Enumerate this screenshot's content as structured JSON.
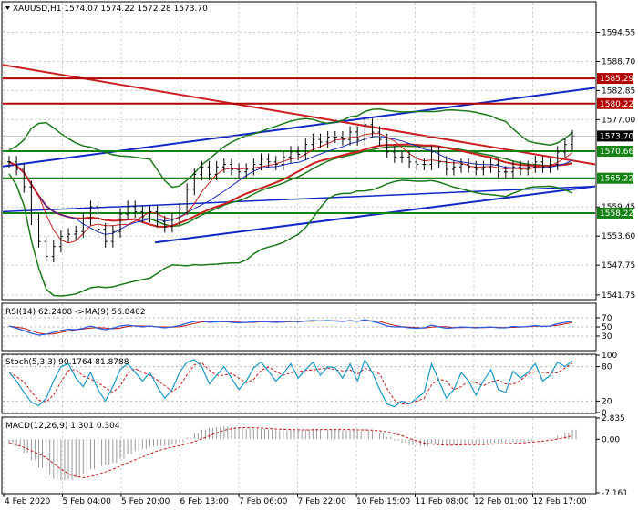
{
  "colors": {
    "price": "#000000",
    "bollinger": "#1a7a1a",
    "sma_fast": "#1c2bbf",
    "sma_slow": "#cc1f1f",
    "support_resistance": "#b00000",
    "green_level": "#148214",
    "blue_channel": "#1029c4",
    "red_trend": "#cc2020",
    "rsi": "#2c5fe0",
    "rsi_ma": "#c01818",
    "stoch_k": "#1898c8",
    "stoch_d": "#cc1818",
    "macd_hist": "#9a9a9a",
    "macd_signal": "#cc1818",
    "current_tag": "#000000"
  },
  "header": {
    "symbol": "XAUUSD,H1",
    "ohlc": "1574.07 1574.22 1572.28 1573.70"
  },
  "chart_data": [
    {
      "type": "line",
      "panel": "price",
      "ylim": [
        1541.0,
        1600.5
      ],
      "grid": true,
      "y_ticks": [
        "1594.55",
        "1588.70",
        "1582.85",
        "1577.00",
        "1559.45",
        "1553.60",
        "1547.75",
        "1541.75"
      ],
      "x_labels": [
        "4 Feb 2020",
        "5 Feb 04:00",
        "5 Feb 20:00",
        "6 Feb 13:00",
        "7 Feb 06:00",
        "7 Feb 22:00",
        "10 Feb 15:00",
        "11 Feb 08:00",
        "12 Feb 01:00",
        "12 Feb 17:00"
      ],
      "levels": [
        {
          "label": "1585.29",
          "value": 1585.29,
          "style": "red"
        },
        {
          "label": "1580.22",
          "value": 1580.22,
          "style": "red"
        },
        {
          "label": "1570.66",
          "value": 1570.66,
          "style": "green"
        },
        {
          "label": "1565.22",
          "value": 1565.22,
          "style": "green"
        },
        {
          "label": "1558.22",
          "value": 1558.22,
          "style": "green"
        }
      ],
      "current_price": {
        "label": "1573.70",
        "value": 1573.7
      },
      "close_points": [
        1568.5,
        1567.0,
        1563.5,
        1557.0,
        1552.5,
        1549.5,
        1551.5,
        1553.5,
        1554.0,
        1554.5,
        1557.0,
        1559.5,
        1555.0,
        1552.5,
        1554.5,
        1558.0,
        1559.5,
        1558.5,
        1557.5,
        1558.5,
        1556.5,
        1555.5,
        1557.0,
        1559.0,
        1563.0,
        1566.0,
        1567.5,
        1566.0,
        1567.5,
        1568.0,
        1567.0,
        1566.5,
        1567.0,
        1568.0,
        1569.0,
        1568.5,
        1568.0,
        1569.5,
        1570.5,
        1570.0,
        1572.0,
        1573.0,
        1572.5,
        1573.5,
        1573.5,
        1573.0,
        1574.5,
        1573.0,
        1576.0,
        1574.5,
        1573.0,
        1570.5,
        1569.5,
        1569.5,
        1568.5,
        1568.0,
        1568.0,
        1570.5,
        1568.5,
        1567.0,
        1567.5,
        1568.0,
        1567.5,
        1567.0,
        1567.5,
        1568.0,
        1566.5,
        1566.5,
        1567.5,
        1567.0,
        1567.5,
        1568.5,
        1567.5,
        1568.0,
        1570.5,
        1572.0,
        1573.7
      ]
    },
    {
      "type": "line",
      "panel": "rsi",
      "label": "RSI(14) 62.2408  ->MA(9) 56.8402",
      "ylim": [
        0,
        100
      ],
      "y_ticks": [
        "70",
        "50",
        "30"
      ],
      "values": [
        52,
        47,
        42,
        36,
        32,
        34,
        38,
        42,
        45,
        44,
        47,
        52,
        47,
        44,
        47,
        52,
        54,
        52,
        50,
        52,
        50,
        48,
        50,
        53,
        58,
        62,
        63,
        60,
        61,
        62,
        60,
        59,
        60,
        61,
        62,
        61,
        60,
        61,
        63,
        61,
        63,
        64,
        63,
        64,
        63,
        62,
        64,
        62,
        66,
        62,
        58,
        52,
        50,
        50,
        48,
        47,
        48,
        54,
        50,
        47,
        48,
        50,
        49,
        48,
        49,
        50,
        48,
        48,
        51,
        50,
        51,
        53,
        51,
        52,
        57,
        60,
        62.24
      ]
    },
    {
      "type": "line",
      "panel": "stochastic",
      "label": "Stoch(5,3,3) 90.1764 81.8788",
      "ylim": [
        0,
        100
      ],
      "y_ticks": [
        "100",
        "80",
        "20",
        "0"
      ],
      "values": [
        70,
        55,
        35,
        18,
        12,
        25,
        55,
        80,
        85,
        60,
        45,
        70,
        40,
        20,
        45,
        75,
        85,
        70,
        55,
        70,
        45,
        25,
        40,
        70,
        88,
        92,
        80,
        50,
        65,
        80,
        60,
        40,
        55,
        78,
        88,
        72,
        55,
        68,
        85,
        60,
        75,
        88,
        65,
        80,
        78,
        60,
        85,
        55,
        92,
        70,
        40,
        15,
        10,
        20,
        15,
        25,
        35,
        85,
        55,
        25,
        40,
        70,
        55,
        30,
        55,
        75,
        40,
        35,
        72,
        60,
        70,
        85,
        55,
        65,
        88,
        80,
        90.18
      ]
    },
    {
      "type": "bar",
      "panel": "macd",
      "label": "MACD(12,26,9) 1.301 0.304",
      "ylim": [
        -7.161,
        2.835
      ],
      "y_ticks": [
        "2.835",
        "0.00",
        "-7.161"
      ],
      "values": [
        -0.5,
        -1.0,
        -1.8,
        -2.8,
        -3.8,
        -4.8,
        -5.3,
        -5.5,
        -5.4,
        -5.1,
        -4.7,
        -4.0,
        -3.6,
        -3.5,
        -3.2,
        -2.6,
        -2.0,
        -1.6,
        -1.3,
        -1.0,
        -0.9,
        -0.9,
        -0.7,
        -0.4,
        0.2,
        0.8,
        1.3,
        1.5,
        1.6,
        1.7,
        1.6,
        1.5,
        1.4,
        1.4,
        1.4,
        1.3,
        1.2,
        1.2,
        1.3,
        1.2,
        1.3,
        1.4,
        1.3,
        1.3,
        1.3,
        1.2,
        1.3,
        1.1,
        1.3,
        1.1,
        0.8,
        0.3,
        -0.2,
        -0.5,
        -0.8,
        -0.9,
        -0.9,
        -0.6,
        -0.7,
        -0.8,
        -0.8,
        -0.7,
        -0.7,
        -0.7,
        -0.6,
        -0.5,
        -0.6,
        -0.6,
        -0.4,
        -0.3,
        -0.2,
        0.0,
        0.0,
        0.1,
        0.5,
        0.9,
        1.3
      ]
    }
  ]
}
